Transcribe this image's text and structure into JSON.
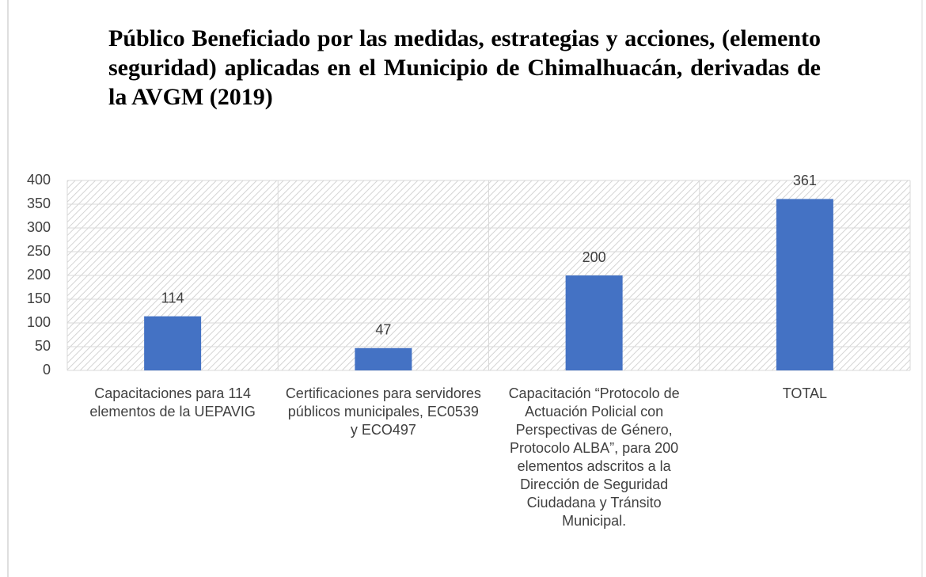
{
  "chart_data": {
    "type": "bar",
    "title": "Público Beneficiado por las medidas, estrategias y acciones, (elemento seguridad) aplicadas en el Municipio de Chimalhuacán, derivadas de la AVGM (2019)",
    "categories": [
      "Capacitaciones  para 114 elementos de la UEPAVIG",
      "Certificaciones para servidores públicos municipales, EC0539 y ECO497",
      "Capacitación “Protocolo de Actuación Policial con Perspectivas de Género, Protocolo ALBA”, para 200 elementos adscritos a la Dirección de Seguridad Ciudadana y Tránsito Municipal.",
      "TOTAL"
    ],
    "values": [
      114,
      47,
      200,
      361
    ],
    "color": "#4472c4",
    "ylim": [
      0,
      400
    ],
    "yticks": [
      0,
      50,
      100,
      150,
      200,
      250,
      300,
      350,
      400
    ],
    "grid": true
  }
}
